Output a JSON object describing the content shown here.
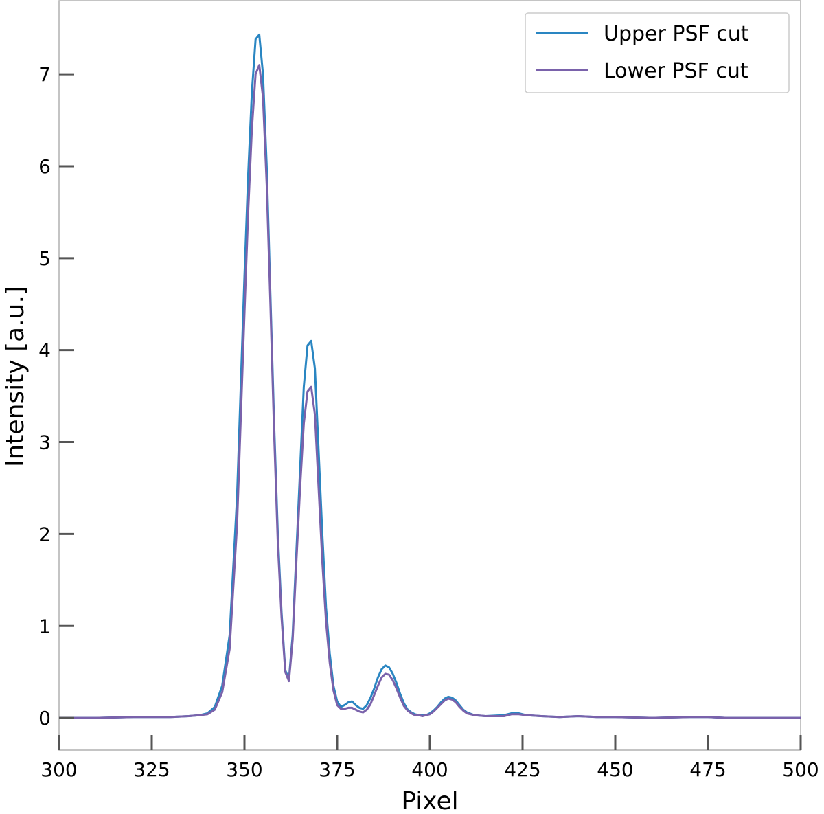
{
  "chart_data": {
    "type": "line",
    "title": "",
    "xlabel": "Pixel",
    "ylabel": "Intensity [a.u.]",
    "xlim": [
      300,
      500
    ],
    "ylim": [
      -0.35,
      7.8
    ],
    "xticks": [
      300,
      325,
      350,
      375,
      400,
      425,
      450,
      475,
      500
    ],
    "yticks": [
      0,
      1,
      2,
      3,
      4,
      5,
      6,
      7
    ],
    "grid": false,
    "legend_position": "top-right",
    "series": [
      {
        "name": "Upper PSF cut",
        "color": "#2a86c2",
        "x": [
          300,
          310,
          320,
          330,
          335,
          338,
          340,
          342,
          344,
          346,
          348,
          350,
          351,
          352,
          353,
          354,
          355,
          356,
          357,
          358,
          359,
          360,
          361,
          362,
          363,
          364,
          365,
          366,
          367,
          368,
          369,
          370,
          371,
          372,
          373,
          374,
          375,
          376,
          377,
          378,
          379,
          380,
          381,
          382,
          383,
          384,
          385,
          386,
          387,
          388,
          389,
          390,
          391,
          392,
          393,
          394,
          395,
          396,
          397,
          398,
          399,
          400,
          401,
          402,
          403,
          404,
          405,
          406,
          407,
          408,
          409,
          410,
          412,
          415,
          420,
          422,
          424,
          426,
          430,
          435,
          440,
          445,
          450,
          460,
          470,
          475,
          480,
          490,
          500
        ],
        "y": [
          0.0,
          0.0,
          0.01,
          0.01,
          0.02,
          0.03,
          0.05,
          0.12,
          0.35,
          0.9,
          2.4,
          4.8,
          5.9,
          6.8,
          7.38,
          7.43,
          7.0,
          6.0,
          4.6,
          3.2,
          2.0,
          1.15,
          0.52,
          0.42,
          0.9,
          1.8,
          2.7,
          3.6,
          4.05,
          4.1,
          3.8,
          2.9,
          2.0,
          1.2,
          0.7,
          0.35,
          0.18,
          0.12,
          0.14,
          0.17,
          0.18,
          0.14,
          0.11,
          0.1,
          0.14,
          0.22,
          0.32,
          0.44,
          0.53,
          0.57,
          0.55,
          0.48,
          0.38,
          0.26,
          0.16,
          0.09,
          0.06,
          0.04,
          0.03,
          0.03,
          0.03,
          0.05,
          0.08,
          0.12,
          0.17,
          0.21,
          0.23,
          0.22,
          0.19,
          0.14,
          0.09,
          0.06,
          0.03,
          0.02,
          0.03,
          0.05,
          0.05,
          0.03,
          0.02,
          0.01,
          0.02,
          0.01,
          0.01,
          0.0,
          0.01,
          0.01,
          0.0,
          0.0,
          0.0
        ]
      },
      {
        "name": "Lower PSF cut",
        "color": "#7a62ab",
        "x": [
          300,
          310,
          320,
          330,
          335,
          338,
          340,
          342,
          344,
          346,
          348,
          350,
          351,
          352,
          353,
          354,
          355,
          356,
          357,
          358,
          359,
          360,
          361,
          362,
          363,
          364,
          365,
          366,
          367,
          368,
          369,
          370,
          371,
          372,
          373,
          374,
          375,
          376,
          377,
          378,
          379,
          380,
          381,
          382,
          383,
          384,
          385,
          386,
          387,
          388,
          389,
          390,
          391,
          392,
          393,
          394,
          395,
          396,
          397,
          398,
          399,
          400,
          401,
          402,
          403,
          404,
          405,
          406,
          407,
          408,
          409,
          410,
          412,
          415,
          420,
          422,
          424,
          426,
          430,
          435,
          440,
          445,
          450,
          460,
          470,
          475,
          480,
          490,
          500
        ],
        "y": [
          0.0,
          0.0,
          0.01,
          0.01,
          0.02,
          0.03,
          0.04,
          0.09,
          0.28,
          0.75,
          2.1,
          4.4,
          5.5,
          6.4,
          7.0,
          7.1,
          6.75,
          5.8,
          4.5,
          3.1,
          1.9,
          1.1,
          0.5,
          0.4,
          0.85,
          1.7,
          2.5,
          3.2,
          3.55,
          3.6,
          3.3,
          2.5,
          1.7,
          1.05,
          0.6,
          0.3,
          0.14,
          0.1,
          0.1,
          0.11,
          0.11,
          0.09,
          0.07,
          0.06,
          0.09,
          0.15,
          0.25,
          0.35,
          0.44,
          0.48,
          0.47,
          0.41,
          0.32,
          0.22,
          0.13,
          0.08,
          0.05,
          0.03,
          0.03,
          0.02,
          0.03,
          0.04,
          0.07,
          0.11,
          0.15,
          0.19,
          0.21,
          0.2,
          0.17,
          0.12,
          0.08,
          0.05,
          0.03,
          0.02,
          0.02,
          0.04,
          0.04,
          0.03,
          0.02,
          0.01,
          0.02,
          0.01,
          0.01,
          0.0,
          0.01,
          0.01,
          0.0,
          0.0,
          0.0
        ]
      }
    ]
  }
}
